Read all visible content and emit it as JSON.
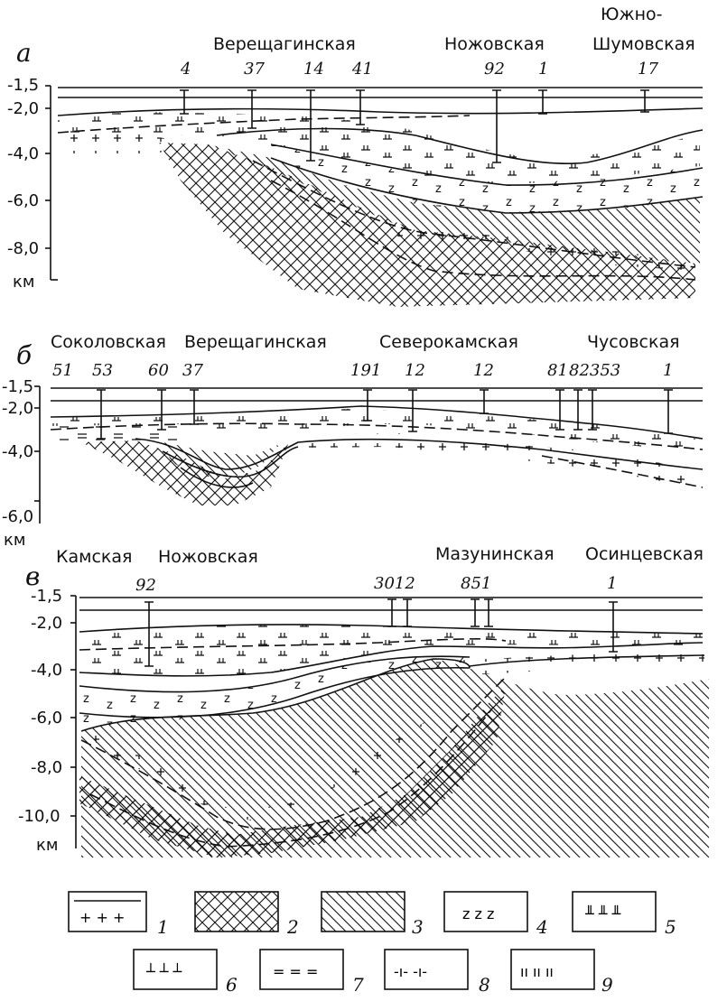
{
  "panels": {
    "a": {
      "letter": "а",
      "areas": [
        "Верещагинская",
        "Ножовская",
        "Южно-",
        "Шумовская"
      ],
      "wells": [
        "4",
        "37",
        "14",
        "41",
        "92",
        "1",
        "17"
      ],
      "depth_ticks": [
        "-1,5",
        "-2,0",
        "-4,0",
        "-6,0",
        "-8,0"
      ],
      "unit": "км"
    },
    "b": {
      "letter": "б",
      "areas": [
        "Соколовская",
        "Верещагинская",
        "Северокамская",
        "Чусовская"
      ],
      "wells": [
        "51",
        "53",
        "60",
        "37",
        "191",
        "12",
        "12",
        "81",
        "82353",
        "1"
      ],
      "depth_ticks": [
        "-1,5",
        "-2,0",
        "-4,0",
        "-6,0"
      ],
      "unit": "км"
    },
    "c": {
      "letter": "в",
      "areas": [
        "Камская",
        "Ножовская",
        "Мазунинская",
        "Осинцевская"
      ],
      "wells": [
        "92",
        "3012",
        "851",
        "1"
      ],
      "depth_ticks": [
        "-1,5",
        "-2,0",
        "-4,0",
        "-6,0",
        "-8,0",
        "-10,0"
      ],
      "unit": "км"
    }
  },
  "legend": {
    "items": [
      {
        "num": "1",
        "symbol": "+ + +"
      },
      {
        "num": "2",
        "symbol": ""
      },
      {
        "num": "3",
        "symbol": ""
      },
      {
        "num": "4",
        "symbol": "z z z"
      },
      {
        "num": "5",
        "symbol": "╨ ╨ ╨"
      },
      {
        "num": "6",
        "symbol": "┴ ┴ ┴"
      },
      {
        "num": "7",
        "symbol": "= = ="
      },
      {
        "num": "8",
        "symbol": "-ı- -ı-"
      },
      {
        "num": "9",
        "symbol": "ıı ıı ıı"
      }
    ]
  }
}
